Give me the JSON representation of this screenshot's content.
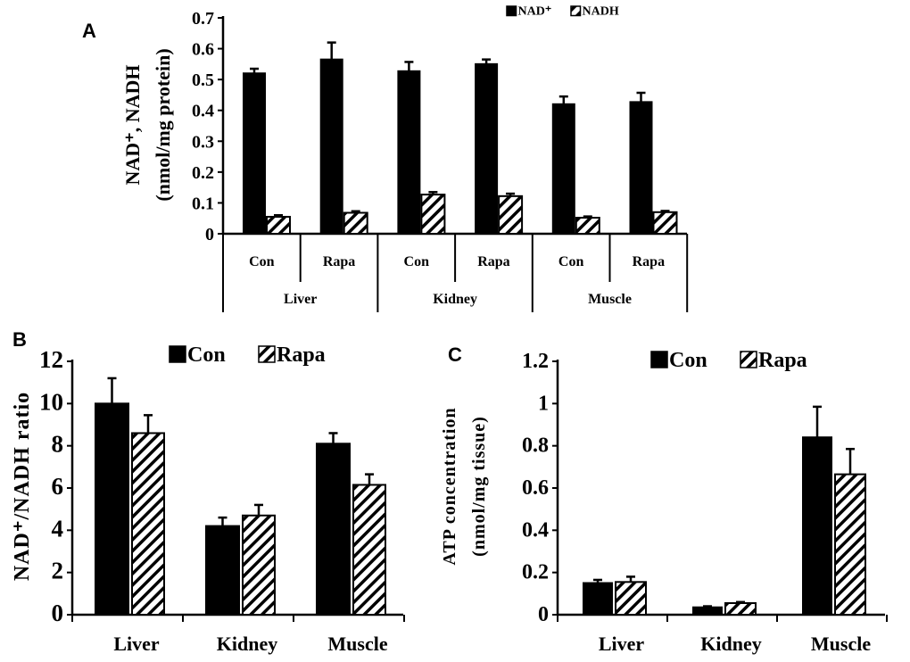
{
  "chart_data": [
    {
      "panel": "A",
      "type": "bar",
      "ylabel": [
        "NAD⁺, NADH",
        "(nmol/mg protein)"
      ],
      "ylim": [
        0,
        0.7
      ],
      "yticks": [
        "0",
        "0.1",
        "0.2",
        "0.3",
        "0.4",
        "0.5",
        "0.6",
        "0.7"
      ],
      "categories": [
        "Con",
        "Rapa",
        "Con",
        "Rapa",
        "Con",
        "Rapa"
      ],
      "groups": [
        "Liver",
        "Kidney",
        "Muscle"
      ],
      "legend_position": "top-right",
      "series": [
        {
          "name": "NAD⁺",
          "fill": "solid",
          "values": [
            0.52,
            0.565,
            0.527,
            0.55,
            0.42,
            0.427
          ],
          "errors": [
            0.015,
            0.055,
            0.03,
            0.015,
            0.025,
            0.03
          ]
        },
        {
          "name": "NADH",
          "fill": "hatched",
          "values": [
            0.055,
            0.068,
            0.127,
            0.122,
            0.052,
            0.07
          ],
          "errors": [
            0.005,
            0.005,
            0.008,
            0.008,
            0.004,
            0.004
          ]
        }
      ]
    },
    {
      "panel": "B",
      "type": "bar",
      "ylabel": [
        "NAD⁺/NADH ratio"
      ],
      "ylim": [
        0,
        12
      ],
      "yticks": [
        "0",
        "2",
        "4",
        "6",
        "8",
        "10",
        "12"
      ],
      "categories": [
        "Liver",
        "Kidney",
        "Muscle"
      ],
      "legend_position": "top",
      "series": [
        {
          "name": "Con",
          "fill": "solid",
          "values": [
            10.0,
            4.2,
            8.1
          ],
          "errors": [
            1.2,
            0.4,
            0.5
          ]
        },
        {
          "name": "Rapa",
          "fill": "hatched",
          "values": [
            8.6,
            4.7,
            6.15
          ],
          "errors": [
            0.85,
            0.5,
            0.5
          ]
        }
      ]
    },
    {
      "panel": "C",
      "type": "bar",
      "ylabel": [
        "ATP concentration",
        "(nmol/mg tissue)"
      ],
      "ylim": [
        0,
        1.2
      ],
      "yticks": [
        "0",
        "0.2",
        "0.4",
        "0.6",
        "0.8",
        "1",
        "1.2"
      ],
      "categories": [
        "Liver",
        "Kidney",
        "Muscle"
      ],
      "legend_position": "top",
      "series": [
        {
          "name": "Con",
          "fill": "solid",
          "values": [
            0.15,
            0.035,
            0.84
          ],
          "errors": [
            0.015,
            0.005,
            0.145
          ]
        },
        {
          "name": "Rapa",
          "fill": "hatched",
          "values": [
            0.155,
            0.055,
            0.665
          ],
          "errors": [
            0.025,
            0.005,
            0.12
          ]
        }
      ]
    }
  ]
}
